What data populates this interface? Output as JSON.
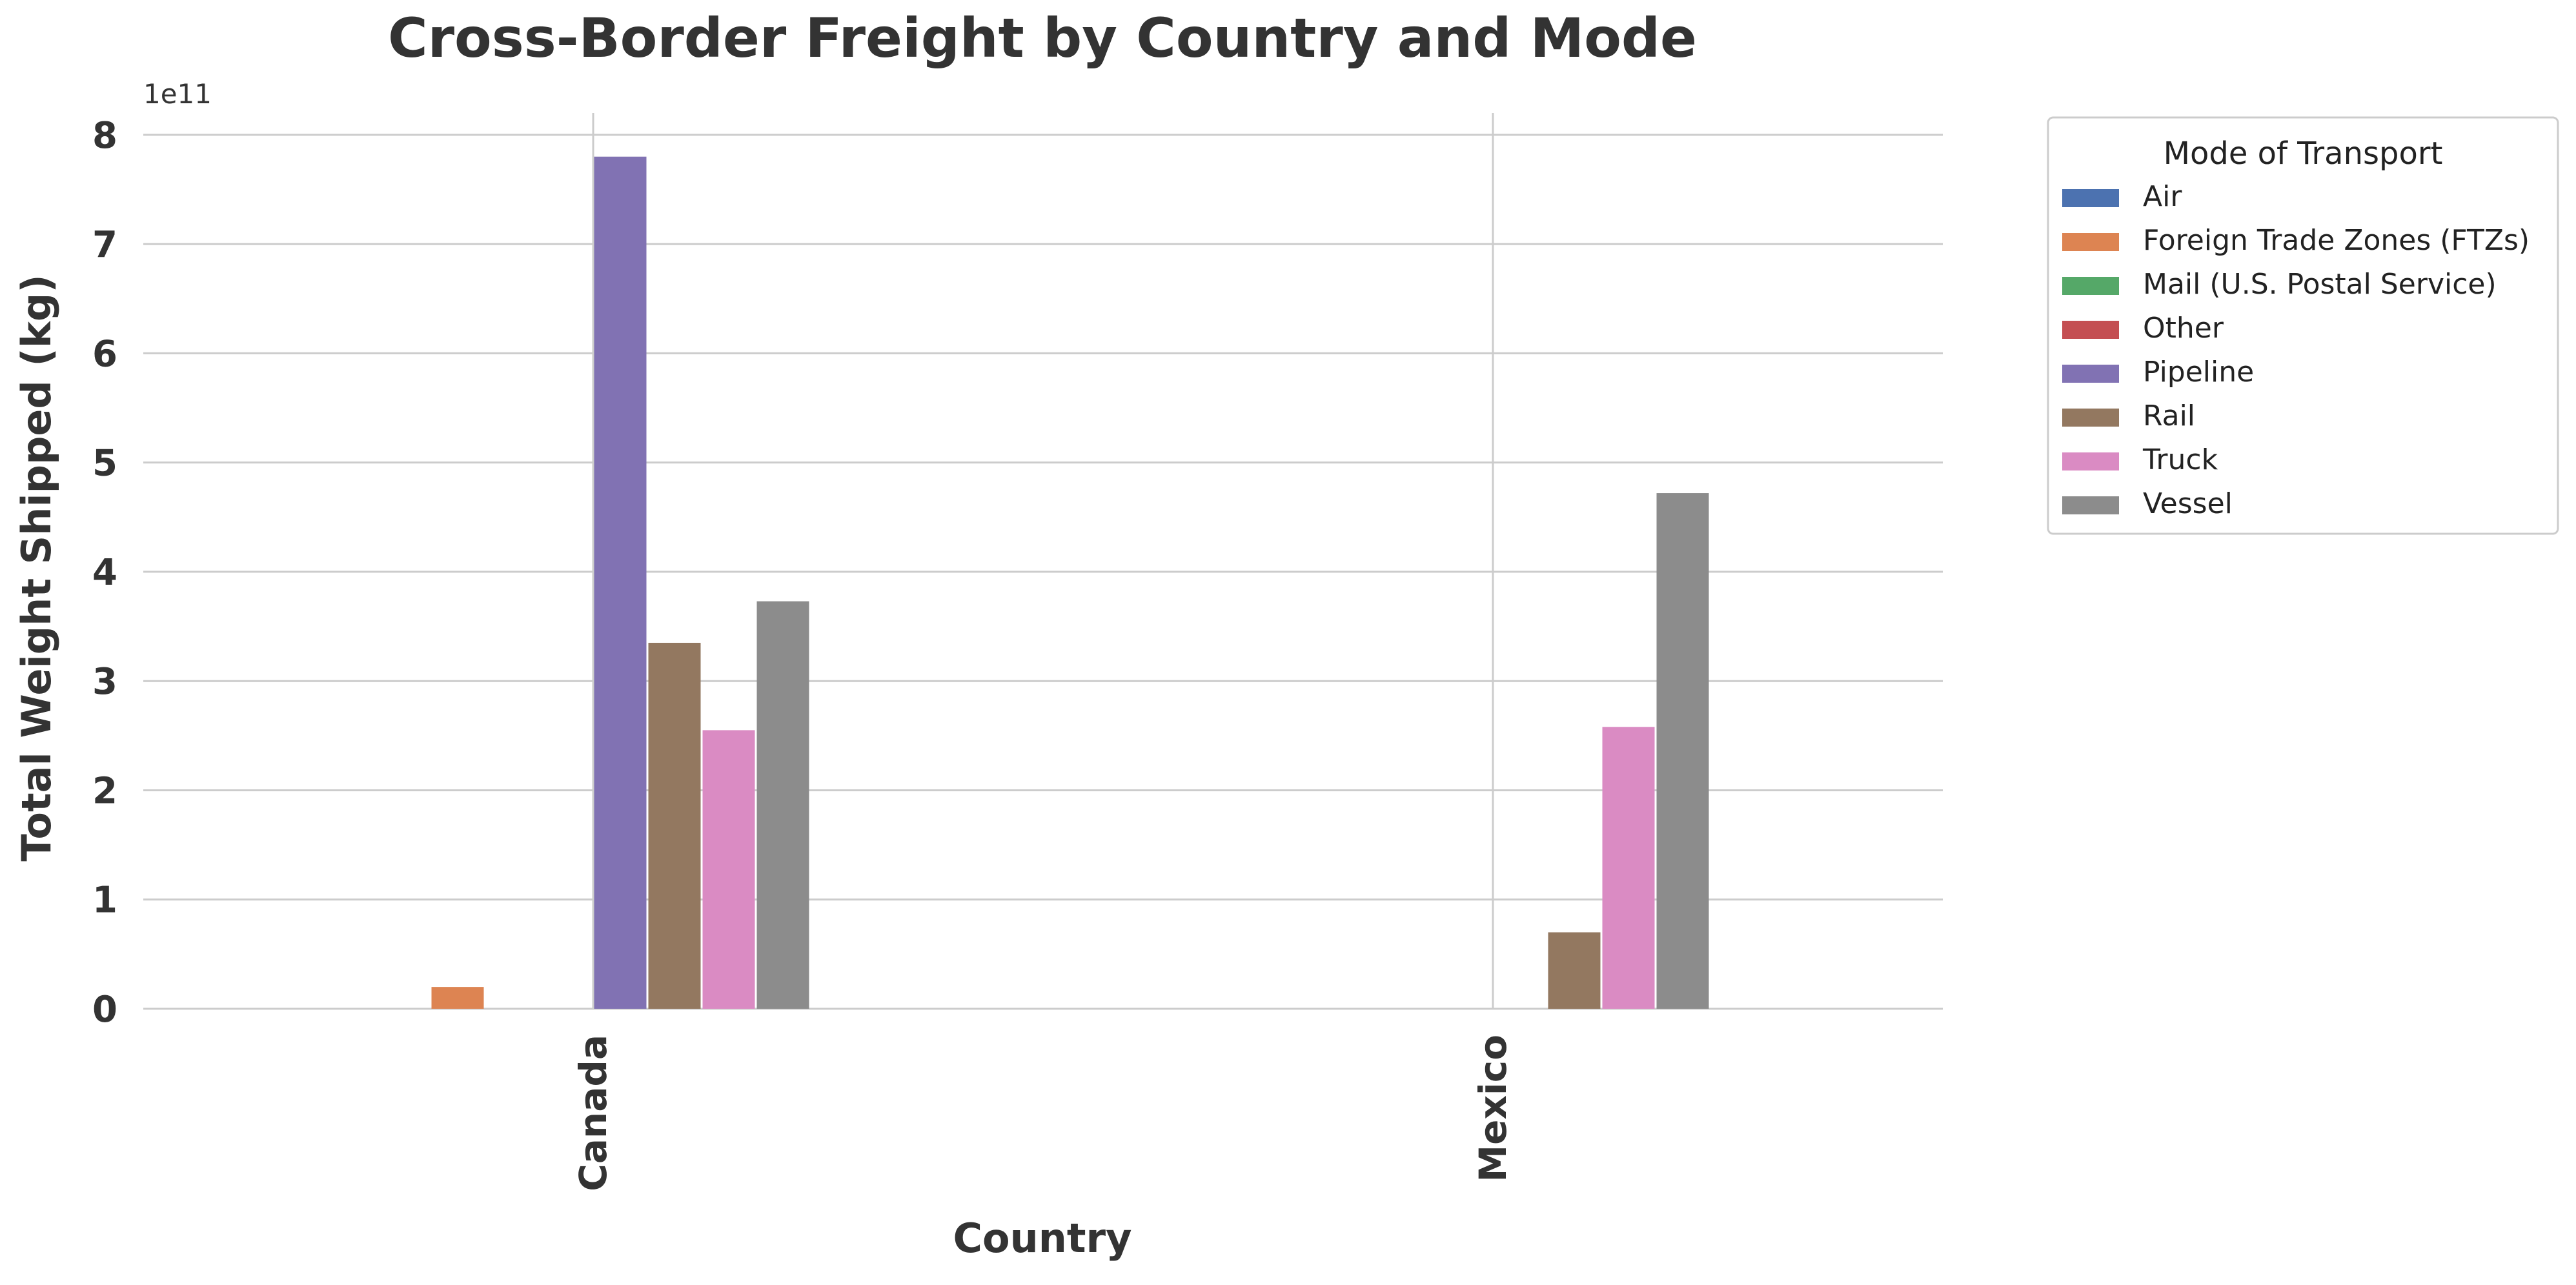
{
  "chart_data": {
    "type": "bar",
    "title": "Cross-Border Freight by Country and Mode",
    "xlabel": "Country",
    "ylabel": "Total Weight Shipped (kg)",
    "y_scale_note": "1e11",
    "ylim": [
      0,
      820000000000.0
    ],
    "yticks": [
      {
        "value": 0,
        "label": "0"
      },
      {
        "value": 100000000000.0,
        "label": "1"
      },
      {
        "value": 200000000000.0,
        "label": "2"
      },
      {
        "value": 300000000000.0,
        "label": "3"
      },
      {
        "value": 400000000000.0,
        "label": "4"
      },
      {
        "value": 500000000000.0,
        "label": "5"
      },
      {
        "value": 600000000000.0,
        "label": "6"
      },
      {
        "value": 700000000000.0,
        "label": "7"
      },
      {
        "value": 800000000000.0,
        "label": "8"
      }
    ],
    "categories": [
      "Canada",
      "Mexico"
    ],
    "legend_title": "Mode of Transport",
    "legend_position": "outside-upper-right",
    "grid": true,
    "series": [
      {
        "name": "Air",
        "color": "#4c72b0",
        "values": [
          0,
          0
        ]
      },
      {
        "name": "Foreign Trade Zones (FTZs)",
        "color": "#dd8452",
        "values": [
          20000000000.0,
          0
        ]
      },
      {
        "name": "Mail (U.S. Postal Service)",
        "color": "#55a868",
        "values": [
          0,
          0
        ]
      },
      {
        "name": "Other",
        "color": "#c44e52",
        "values": [
          0,
          0
        ]
      },
      {
        "name": "Pipeline",
        "color": "#8172b3",
        "values": [
          780000000000.0,
          0
        ]
      },
      {
        "name": "Rail",
        "color": "#937860",
        "values": [
          335000000000.0,
          70000000000.0
        ]
      },
      {
        "name": "Truck",
        "color": "#da8bc3",
        "values": [
          255000000000.0,
          258000000000.0
        ]
      },
      {
        "name": "Vessel",
        "color": "#8c8c8c",
        "values": [
          373000000000.0,
          472000000000.0
        ]
      }
    ]
  },
  "colors": {
    "text": "#333333",
    "grid": "#cccccc",
    "legend_border": "#cccccc",
    "background": "#ffffff"
  }
}
